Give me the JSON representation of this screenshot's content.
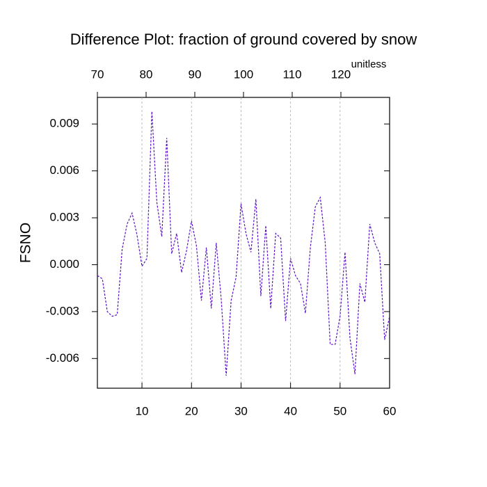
{
  "chart_data": {
    "type": "line",
    "title": "Difference Plot: fraction of ground covered by snow",
    "y_label": "FSNO",
    "units_label": "unitless",
    "x": [
      1,
      2,
      3,
      4,
      5,
      6,
      7,
      8,
      9,
      10,
      11,
      12,
      13,
      14,
      15,
      16,
      17,
      18,
      19,
      20,
      21,
      22,
      23,
      24,
      25,
      26,
      27,
      28,
      29,
      30,
      31,
      32,
      33,
      34,
      35,
      36,
      37,
      38,
      39,
      40,
      41,
      42,
      43,
      44,
      45,
      46,
      47,
      48,
      49,
      50,
      51,
      52,
      53,
      54,
      55,
      56,
      57,
      58,
      59,
      60
    ],
    "series": [
      {
        "color": "#5a10c8",
        "values": [
          -0.0007,
          -0.0009,
          -0.003,
          -0.0033,
          -0.0032,
          0.001,
          0.0026,
          0.0033,
          0.0019,
          -0.0001,
          0.0004,
          0.0098,
          0.004,
          0.0018,
          0.0081,
          0.0007,
          0.002,
          -0.0005,
          0.0009,
          0.0028,
          0.0012,
          -0.0023,
          0.0011,
          -0.0028,
          0.0014,
          -0.0022,
          -0.0071,
          -0.0023,
          -0.0008,
          0.0039,
          0.002,
          0.0008,
          0.0042,
          -0.002,
          0.0025,
          -0.0028,
          0.002,
          0.0017,
          -0.0036,
          0.0004,
          -0.0007,
          -0.0012,
          -0.0031,
          0.0011,
          0.0037,
          0.0043,
          0.0014,
          -0.0051,
          -0.0051,
          -0.0033,
          0.0008,
          -0.0047,
          -0.007,
          -0.0012,
          -0.0024,
          0.0026,
          0.0014,
          0.0007,
          -0.0048,
          -0.0033
        ]
      }
    ],
    "xlim": [
      1,
      60
    ],
    "xticks": [
      10,
      20,
      30,
      40,
      50,
      60
    ],
    "xtick_color": "#ff0000",
    "x2lim": [
      70,
      130
    ],
    "x2ticks": [
      70,
      80,
      90,
      100,
      110,
      120
    ],
    "x2tick_color": "#0000ff",
    "ylim": [
      -0.0079,
      0.0107
    ],
    "yticks": [
      {
        "value": -0.006,
        "label": "-0.006"
      },
      {
        "value": -0.003,
        "label": "-0.003"
      },
      {
        "value": 0,
        "label": "0.000"
      },
      {
        "value": 0.003,
        "label": "0.003"
      },
      {
        "value": 0.006,
        "label": "0.006"
      },
      {
        "value": 0.009,
        "label": "0.009"
      }
    ],
    "grid": true
  }
}
